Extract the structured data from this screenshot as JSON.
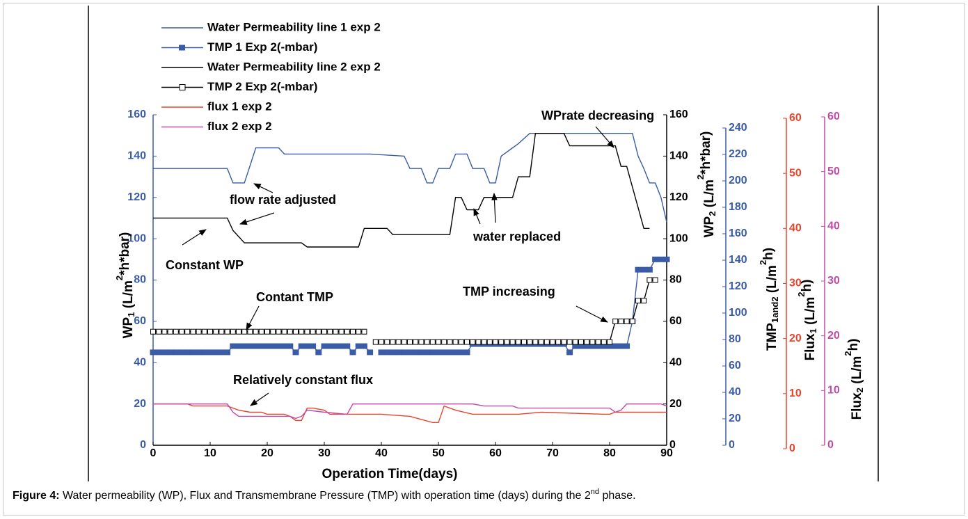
{
  "chart_data": {
    "type": "line",
    "x_label": "Operation Time(days)",
    "xlim": [
      0,
      90
    ],
    "xticks": [
      0,
      10,
      20,
      30,
      40,
      50,
      60,
      70,
      80,
      90
    ],
    "axes": [
      {
        "labels": [
          [
            "WP",
            "1",
            " (L/m",
            "2",
            "*h*bar)"
          ]
        ],
        "color": "#3a5ba6",
        "ylim": [
          0,
          160
        ],
        "yticks": [
          0,
          20,
          40,
          60,
          80,
          100,
          120,
          140,
          160
        ]
      },
      {
        "labels": [
          [
            "WP",
            "2",
            " (L/m",
            "2",
            "*h*bar)"
          ]
        ],
        "color": "#000000",
        "ylim": [
          0,
          160
        ],
        "yticks": [
          0,
          20,
          40,
          60,
          80,
          100,
          120,
          140,
          160
        ]
      },
      {
        "labels": [],
        "color": "#3a5ba6",
        "ylim": [
          0,
          240
        ],
        "yticks": [
          0,
          20,
          40,
          60,
          80,
          100,
          120,
          140,
          160,
          180,
          200,
          220,
          240
        ]
      },
      {
        "labels": [
          [
            "TMP",
            "1and2",
            " (L/m",
            "2",
            "h)"
          ]
        ],
        "color": "#e8442c",
        "ylim": [
          0,
          60
        ],
        "yticks": [
          0,
          10,
          20,
          30,
          40,
          50,
          60
        ]
      },
      {
        "labels": [
          [
            "Flux",
            "1",
            " (L/m",
            "2",
            "h)"
          ],
          [
            "Flux",
            "2",
            " (L/m",
            "2",
            "h)"
          ]
        ],
        "color": "#c04aa8",
        "ylim": [
          0,
          60
        ],
        "yticks": [
          0,
          10,
          20,
          30,
          40,
          50,
          60
        ]
      }
    ],
    "series": [
      {
        "name": "Water Permeability line 1 exp 2",
        "color": "#3a5ba6",
        "x": [
          0,
          13,
          14,
          16,
          18,
          22,
          23,
          38,
          44,
          45,
          47,
          48,
          49,
          50,
          52,
          53,
          55,
          56,
          58,
          59,
          60,
          61,
          63,
          64,
          66,
          84,
          85,
          86,
          87,
          88,
          89,
          90
        ],
        "values": [
          134,
          134,
          127,
          127,
          144,
          144,
          141,
          141,
          140,
          134,
          134,
          127,
          127,
          134,
          134,
          141,
          141,
          134,
          134,
          127,
          127,
          140,
          144,
          146,
          151,
          151,
          140,
          134,
          127,
          127,
          120,
          108
        ]
      },
      {
        "name": "TMP 1 Exp 2(-mbar)",
        "color": "#3a5ba6",
        "marker": "filled-square",
        "x": [
          0,
          1,
          2,
          3,
          4,
          5,
          6,
          7,
          8,
          9,
          10,
          11,
          12,
          13,
          14,
          15,
          16,
          17,
          18,
          19,
          20,
          21,
          22,
          23,
          24,
          25,
          26,
          27,
          28,
          29,
          30,
          31,
          32,
          33,
          34,
          35,
          36,
          37,
          38,
          39,
          40,
          41,
          42,
          43,
          44,
          45,
          46,
          47,
          48,
          49,
          50,
          51,
          52,
          53,
          54,
          55,
          56,
          57,
          58,
          59,
          60,
          61,
          62,
          63,
          64,
          65,
          66,
          67,
          68,
          69,
          70,
          71,
          72,
          73,
          74,
          75,
          76,
          77,
          78,
          79,
          80,
          81,
          82,
          83,
          84,
          85,
          86,
          87,
          88,
          89,
          90
        ],
        "values": [
          45,
          45,
          45,
          45,
          45,
          45,
          45,
          45,
          45,
          45,
          45,
          45,
          45,
          45,
          48,
          48,
          48,
          48,
          48,
          48,
          48,
          48,
          48,
          48,
          48,
          45,
          48,
          48,
          48,
          45,
          48,
          48,
          48,
          48,
          48,
          45,
          48,
          48,
          45,
          null,
          45,
          45,
          45,
          45,
          45,
          45,
          45,
          45,
          45,
          45,
          45,
          45,
          45,
          45,
          45,
          45,
          49,
          49,
          49,
          49,
          49,
          49,
          49,
          49,
          49,
          49,
          49,
          49,
          49,
          49,
          49,
          49,
          49,
          45,
          48,
          48,
          48,
          48,
          48,
          48,
          48,
          48,
          48,
          48,
          60,
          85,
          85,
          85,
          90,
          90,
          90
        ]
      },
      {
        "name": "Water Permeability line 2 exp 2",
        "color": "#000000",
        "x": [
          0,
          13,
          14,
          16,
          26,
          27,
          36,
          37,
          41,
          42,
          52,
          53,
          54,
          55,
          57,
          58,
          63,
          64,
          66,
          67,
          72,
          73,
          81,
          82,
          83,
          84,
          85,
          86,
          87
        ],
        "values": [
          110,
          110,
          104,
          98,
          98,
          96,
          96,
          105,
          105,
          102,
          102,
          120,
          120,
          114,
          114,
          120,
          120,
          130,
          130,
          151,
          151,
          145,
          145,
          135,
          135,
          125,
          115,
          105,
          105
        ]
      },
      {
        "name": "TMP 2 Exp 2(-mbar)",
        "color": "#000000",
        "marker": "open-square",
        "x": [
          0,
          1,
          2,
          3,
          4,
          5,
          6,
          7,
          8,
          9,
          10,
          11,
          12,
          13,
          14,
          15,
          16,
          17,
          18,
          19,
          20,
          21,
          22,
          23,
          24,
          25,
          26,
          27,
          28,
          29,
          30,
          31,
          32,
          33,
          34,
          35,
          36,
          37,
          38,
          39,
          40,
          41,
          42,
          43,
          44,
          45,
          46,
          47,
          48,
          49,
          50,
          51,
          52,
          53,
          54,
          55,
          56,
          57,
          58,
          59,
          60,
          61,
          62,
          63,
          64,
          65,
          66,
          67,
          68,
          69,
          70,
          71,
          72,
          73,
          74,
          75,
          76,
          77,
          78,
          79,
          80,
          81,
          82,
          83,
          84,
          85,
          86,
          87,
          88
        ],
        "values": [
          55,
          55,
          55,
          55,
          55,
          55,
          55,
          55,
          55,
          55,
          55,
          55,
          55,
          55,
          55,
          55,
          55,
          55,
          55,
          55,
          55,
          55,
          55,
          55,
          55,
          55,
          55,
          55,
          55,
          55,
          55,
          55,
          55,
          55,
          55,
          55,
          55,
          55,
          null,
          50,
          50,
          50,
          50,
          50,
          50,
          50,
          50,
          50,
          50,
          50,
          50,
          50,
          50,
          50,
          50,
          50,
          50,
          50,
          50,
          50,
          50,
          50,
          50,
          50,
          50,
          50,
          50,
          50,
          50,
          50,
          50,
          50,
          50,
          50,
          50,
          50,
          50,
          50,
          50,
          50,
          50,
          60,
          60,
          60,
          60,
          70,
          70,
          80,
          80
        ]
      },
      {
        "name": "flux 1 exp 2",
        "color": "#e8442c",
        "x": [
          0,
          6,
          7,
          13,
          15,
          17,
          19,
          20,
          23,
          24,
          25,
          26,
          27,
          28,
          30,
          31,
          40,
          45,
          49,
          50,
          51,
          53,
          56,
          64,
          68,
          79,
          80,
          81,
          90
        ],
        "values": [
          20,
          20,
          19,
          19,
          17,
          16,
          16,
          15,
          15,
          14,
          12,
          12,
          18,
          18,
          17,
          15,
          15,
          14,
          11,
          11,
          19,
          17,
          15,
          15,
          16,
          15,
          15,
          16,
          16
        ]
      },
      {
        "name": "flux 2 exp 2",
        "color": "#c04aa8",
        "x": [
          0,
          13,
          14,
          15,
          24,
          25,
          26,
          27,
          30,
          34,
          35,
          56,
          58,
          63,
          64,
          80,
          81,
          82,
          83,
          89,
          90
        ],
        "values": [
          20,
          20,
          16,
          14,
          14,
          13,
          14,
          17,
          16,
          15,
          20,
          20,
          19,
          19,
          18,
          18,
          16,
          17,
          20,
          20,
          19
        ]
      }
    ],
    "annotations": [
      "WPrate decreasing",
      "flow rate adjusted",
      "Constant WP",
      "water replaced",
      "Contant TMP",
      "TMP increasing",
      "Relatively constant flux"
    ],
    "caption": {
      "label": "Figure 4:",
      "text": [
        " Water permeability (WP), Flux and Transmembrane Pressure (TMP) with operation time (days) during the 2",
        "nd",
        " phase."
      ]
    }
  }
}
